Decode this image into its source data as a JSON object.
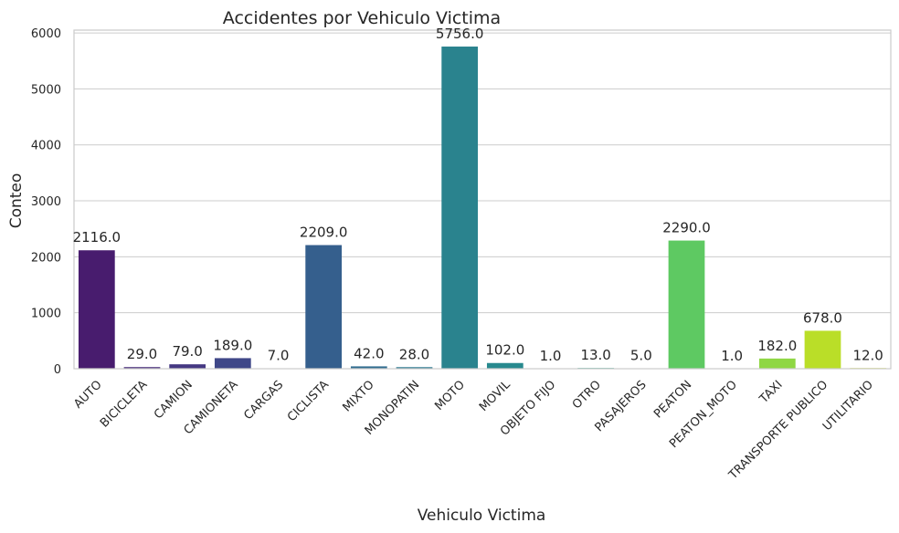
{
  "chart_data": {
    "type": "bar",
    "title": "Accidentes por Vehiculo Victima",
    "xlabel": "Vehiculo Victima",
    "ylabel": "Conteo",
    "ylim": [
      0,
      6050
    ],
    "yticks": [
      0,
      1000,
      2000,
      3000,
      4000,
      5000,
      6000
    ],
    "grid": true,
    "categories": [
      "AUTO",
      "BICICLETA",
      "CAMION",
      "CAMIONETA",
      "CARGAS",
      "CICLISTA",
      "MIXTO",
      "MONOPATIN",
      "MOTO",
      "MOVIL",
      "OBJETO FIJO",
      "OTRO",
      "PASAJEROS",
      "PEATON",
      "PEATON_MOTO",
      "TAXI",
      "TRANSPORTE PUBLICO",
      "UTILITARIO"
    ],
    "values": [
      2116,
      29,
      79,
      189,
      7,
      2209,
      42,
      28,
      5756,
      102,
      1,
      13,
      5,
      2290,
      1,
      182,
      678,
      12
    ],
    "data_labels": [
      "2116.0",
      "29.0",
      "79.0",
      "189.0",
      "7.0",
      "2209.0",
      "42.0",
      "28.0",
      "5756.0",
      "102.0",
      "1.0",
      "13.0",
      "5.0",
      "2290.0",
      "1.0",
      "182.0",
      "678.0",
      "12.0"
    ],
    "colors": [
      "#481c6e",
      "#472b7a",
      "#453882",
      "#3f4788",
      "#3a548c",
      "#355f8d",
      "#2f6c8e",
      "#2b778e",
      "#2a838e",
      "#27898e",
      "#20928c",
      "#23a083",
      "#2eaa7a",
      "#5ec962",
      "#7ad151",
      "#8fd744",
      "#bade28",
      "#d5e21a"
    ]
  }
}
